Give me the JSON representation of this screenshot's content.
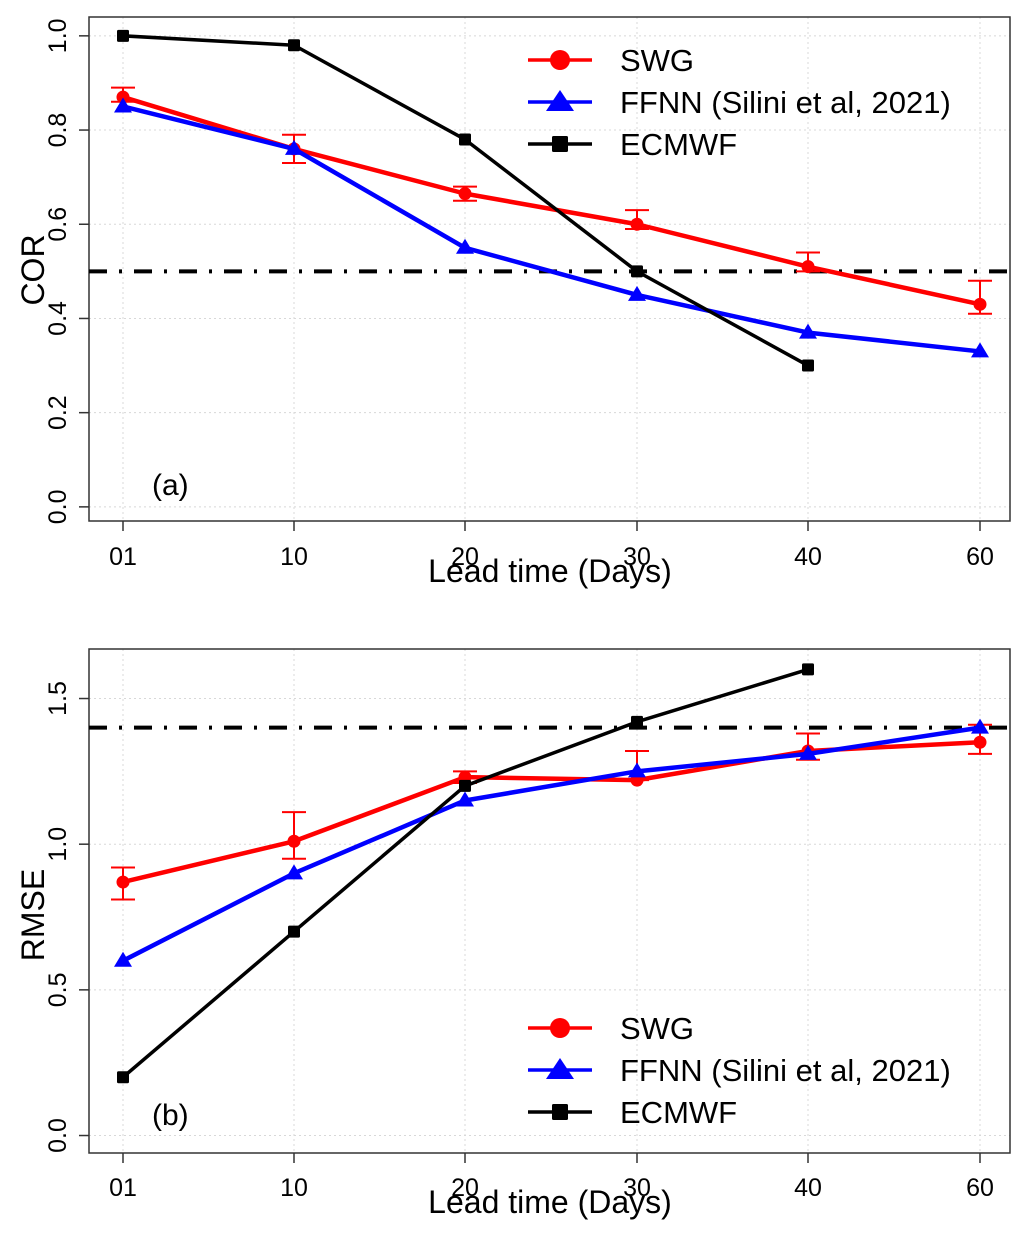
{
  "chart_data": [
    {
      "type": "line",
      "panel_label": "(a)",
      "xlabel": "Lead time (Days)",
      "ylabel": "COR",
      "categories": [
        "01",
        "10",
        "20",
        "30",
        "40",
        "60"
      ],
      "ylim": [
        -0.03,
        1.04
      ],
      "yticks": [
        0.0,
        0.2,
        0.4,
        0.6,
        0.8,
        1.0
      ],
      "ytick_labels": [
        "0.0",
        "0.2",
        "0.4",
        "0.6",
        "0.8",
        "1.0"
      ],
      "grid": true,
      "reference_line": {
        "value": 0.5,
        "style": "dotdash"
      },
      "legend_position": "top-right",
      "series": [
        {
          "name": "SWG",
          "color": "#ff0000",
          "marker": "circle",
          "values": [
            0.87,
            0.76,
            0.665,
            0.6,
            0.51,
            0.43
          ],
          "error_low": [
            0.86,
            0.73,
            0.65,
            0.59,
            0.5,
            0.41
          ],
          "error_high": [
            0.89,
            0.79,
            0.68,
            0.63,
            0.54,
            0.48
          ]
        },
        {
          "name": "FFNN (Silini et al, 2021)",
          "color": "#0000ff",
          "marker": "triangle",
          "values": [
            0.85,
            0.76,
            0.55,
            0.45,
            0.37,
            0.33
          ]
        },
        {
          "name": "ECMWF",
          "color": "#000000",
          "marker": "square",
          "values": [
            1.0,
            0.98,
            0.78,
            0.5,
            0.3,
            null
          ]
        }
      ]
    },
    {
      "type": "line",
      "panel_label": "(b)",
      "xlabel": "Lead time (Days)",
      "ylabel": "RMSE",
      "categories": [
        "01",
        "10",
        "20",
        "30",
        "40",
        "60"
      ],
      "ylim": [
        -0.06,
        1.67
      ],
      "yticks": [
        0.0,
        0.5,
        1.0,
        1.5
      ],
      "ytick_labels": [
        "0.0",
        "0.5",
        "1.0",
        "1.5"
      ],
      "grid": true,
      "reference_line": {
        "value": 1.4,
        "style": "dotdash"
      },
      "legend_position": "bottom-right",
      "series": [
        {
          "name": "SWG",
          "color": "#ff0000",
          "marker": "circle",
          "values": [
            0.87,
            1.01,
            1.23,
            1.22,
            1.32,
            1.35
          ],
          "error_low": [
            0.81,
            0.95,
            1.21,
            1.22,
            1.29,
            1.31
          ],
          "error_high": [
            0.92,
            1.11,
            1.25,
            1.32,
            1.38,
            1.41
          ]
        },
        {
          "name": "FFNN (Silini et al, 2021)",
          "color": "#0000ff",
          "marker": "triangle",
          "values": [
            0.6,
            0.9,
            1.15,
            1.25,
            1.31,
            1.4
          ]
        },
        {
          "name": "ECMWF",
          "color": "#000000",
          "marker": "square",
          "values": [
            0.2,
            0.7,
            1.2,
            1.42,
            1.6,
            null
          ]
        }
      ]
    }
  ]
}
